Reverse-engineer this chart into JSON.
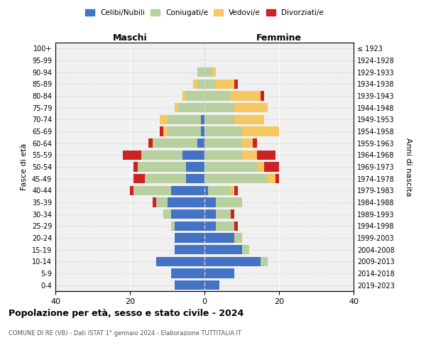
{
  "age_groups": [
    "0-4",
    "5-9",
    "10-14",
    "15-19",
    "20-24",
    "25-29",
    "30-34",
    "35-39",
    "40-44",
    "45-49",
    "50-54",
    "55-59",
    "60-64",
    "65-69",
    "70-74",
    "75-79",
    "80-84",
    "85-89",
    "90-94",
    "95-99",
    "100+"
  ],
  "birth_years": [
    "2019-2023",
    "2014-2018",
    "2009-2013",
    "2004-2008",
    "1999-2003",
    "1994-1998",
    "1989-1993",
    "1984-1988",
    "1979-1983",
    "1974-1978",
    "1969-1973",
    "1964-1968",
    "1959-1963",
    "1954-1958",
    "1949-1953",
    "1944-1948",
    "1939-1943",
    "1934-1938",
    "1929-1933",
    "1924-1928",
    "≤ 1923"
  ],
  "colors": {
    "celibi": "#4472c4",
    "coniugati": "#b8cfa0",
    "vedovi": "#f5c862",
    "divorziati": "#cc2222"
  },
  "males": {
    "celibi": [
      8,
      9,
      13,
      8,
      8,
      8,
      9,
      10,
      9,
      5,
      5,
      6,
      2,
      1,
      1,
      0,
      0,
      0,
      0,
      0,
      0
    ],
    "coniugati": [
      0,
      0,
      0,
      0,
      0,
      1,
      2,
      3,
      10,
      11,
      13,
      11,
      12,
      9,
      9,
      7,
      5,
      2,
      2,
      0,
      0
    ],
    "vedovi": [
      0,
      0,
      0,
      0,
      0,
      0,
      0,
      0,
      0,
      0,
      0,
      0,
      0,
      1,
      2,
      1,
      1,
      1,
      0,
      0,
      0
    ],
    "divorziati": [
      0,
      0,
      0,
      0,
      0,
      0,
      0,
      1,
      1,
      3,
      1,
      5,
      1,
      1,
      0,
      0,
      0,
      0,
      0,
      0,
      0
    ]
  },
  "females": {
    "nubili": [
      4,
      8,
      15,
      10,
      8,
      3,
      3,
      3,
      1,
      0,
      0,
      0,
      0,
      0,
      0,
      0,
      0,
      0,
      0,
      0,
      0
    ],
    "coniugate": [
      0,
      0,
      2,
      2,
      2,
      5,
      4,
      7,
      6,
      17,
      14,
      10,
      10,
      10,
      8,
      8,
      7,
      3,
      2,
      0,
      0
    ],
    "vedove": [
      0,
      0,
      0,
      0,
      0,
      0,
      0,
      0,
      1,
      2,
      2,
      4,
      3,
      10,
      8,
      9,
      8,
      5,
      1,
      0,
      0
    ],
    "divorziate": [
      0,
      0,
      0,
      0,
      0,
      1,
      1,
      0,
      1,
      1,
      4,
      5,
      1,
      0,
      0,
      0,
      1,
      1,
      0,
      0,
      0
    ]
  },
  "xlim": 40,
  "title": "Popolazione per età, sesso e stato civile - 2024",
  "subtitle": "COMUNE DI RE (VB) - Dati ISTAT 1° gennaio 2024 - Elaborazione TUTTITALIA.IT",
  "ylabel_left": "Fasce di età",
  "ylabel_right": "Anni di nascita",
  "xlabel_maschi": "Maschi",
  "xlabel_femmine": "Femmine",
  "legend_labels": [
    "Celibi/Nubili",
    "Coniugati/e",
    "Vedovi/e",
    "Divorziati/e"
  ],
  "bg_color": "#f0f0f0"
}
